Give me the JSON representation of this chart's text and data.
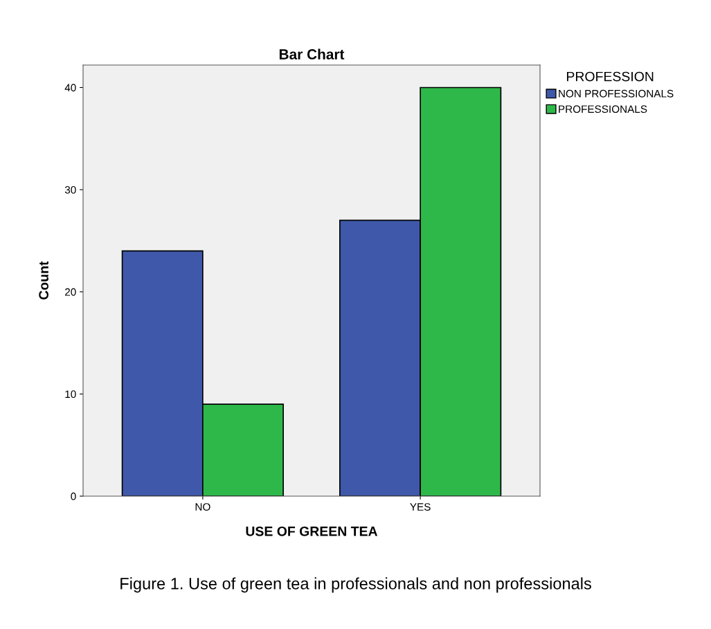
{
  "chart_data": {
    "type": "bar",
    "title": "Bar Chart",
    "xlabel": "USE OF GREEN TEA",
    "ylabel": "Count",
    "legend_title": "PROFESSION",
    "categories": [
      "NO",
      "YES"
    ],
    "series": [
      {
        "name": "NON PROFESSIONALS",
        "color": "#3f58a9",
        "values": [
          24,
          27
        ]
      },
      {
        "name": "PROFESSIONALS",
        "color": "#2eb84a",
        "values": [
          9,
          40
        ]
      }
    ],
    "ylim": [
      0,
      42.2
    ],
    "yticks": [
      0,
      10,
      20,
      30,
      40
    ],
    "grid": false,
    "legend": "top right",
    "annotations": [
      "Figure 1. Use of green tea in professionals and non professionals"
    ]
  }
}
